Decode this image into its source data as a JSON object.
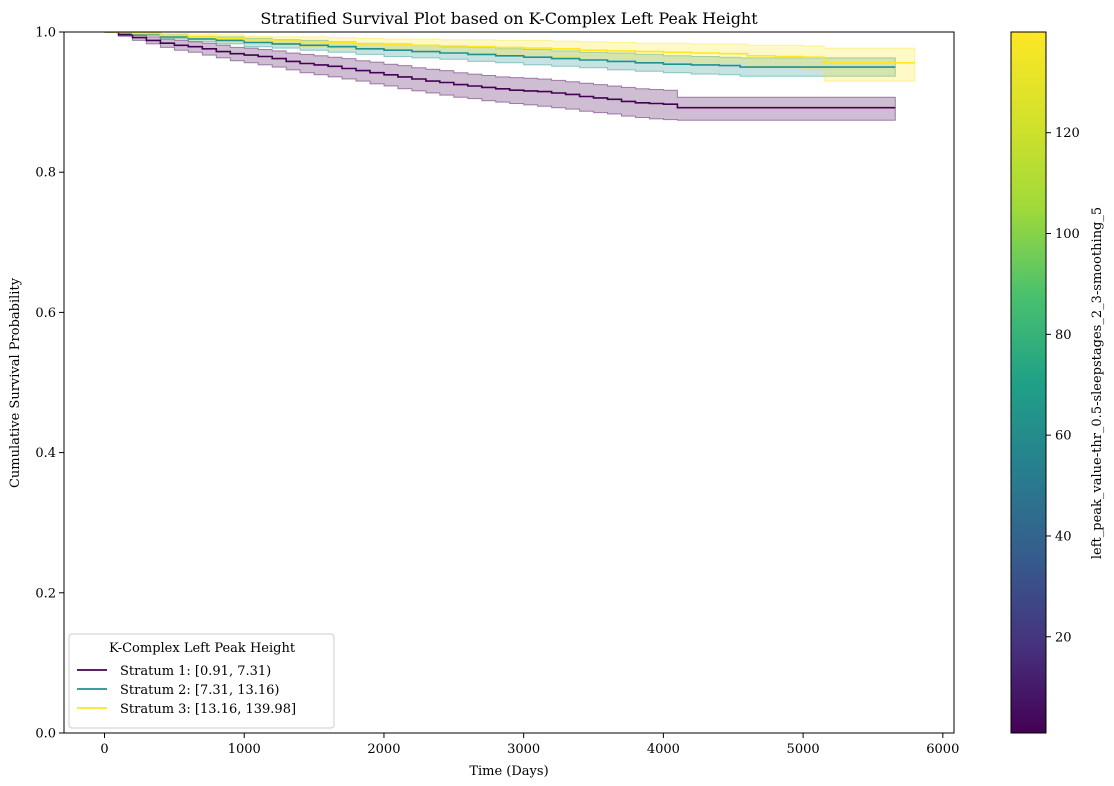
{
  "chart_data": {
    "type": "line",
    "title": "Stratified Survival Plot based on K-Complex Left Peak Height",
    "xlabel": "Time (Days)",
    "ylabel": "Cumulative Survival Probability",
    "xlim": [
      -290,
      6080
    ],
    "ylim": [
      0.0,
      1.0
    ],
    "xticks": [
      0,
      1000,
      2000,
      3000,
      4000,
      5000,
      6000
    ],
    "xtick_labels": [
      "0",
      "1000",
      "2000",
      "3000",
      "4000",
      "5000",
      "6000"
    ],
    "yticks": [
      0.0,
      0.2,
      0.4,
      0.6,
      0.8,
      1.0
    ],
    "ytick_labels": [
      "0.0",
      "0.2",
      "0.4",
      "0.6",
      "0.8",
      "1.0"
    ],
    "grid": false,
    "legend": {
      "title": "K-Complex Left Peak Height",
      "placement": "lower-left"
    },
    "colorbar": {
      "label": "left_peak_value-thr_0.5-sleepstages_2_3-smoothing_5",
      "range": [
        0.91,
        139.98
      ],
      "ticks": [
        20,
        40,
        60,
        80,
        100,
        120
      ],
      "tick_labels": [
        "20",
        "40",
        "60",
        "80",
        "100",
        "120"
      ]
    },
    "series": [
      {
        "name": "Stratum 1: [0.91, 7.31)",
        "color": "#440154",
        "x": [
          0,
          100,
          200,
          300,
          400,
          500,
          600,
          700,
          800,
          900,
          1000,
          1100,
          1200,
          1300,
          1400,
          1500,
          1600,
          1700,
          1800,
          1900,
          2000,
          2100,
          2200,
          2300,
          2400,
          2500,
          2600,
          2700,
          2800,
          2900,
          3000,
          3100,
          3200,
          3300,
          3400,
          3500,
          3600,
          3700,
          3800,
          3900,
          4000,
          4100,
          5660
        ],
        "y": [
          1.0,
          0.996,
          0.992,
          0.988,
          0.984,
          0.981,
          0.979,
          0.976,
          0.972,
          0.969,
          0.967,
          0.965,
          0.962,
          0.958,
          0.955,
          0.953,
          0.951,
          0.948,
          0.945,
          0.942,
          0.939,
          0.936,
          0.933,
          0.93,
          0.928,
          0.925,
          0.923,
          0.921,
          0.919,
          0.917,
          0.916,
          0.915,
          0.913,
          0.911,
          0.908,
          0.906,
          0.904,
          0.901,
          0.899,
          0.898,
          0.897,
          0.892,
          0.892
        ],
        "ci_lower": [
          1.0,
          0.994,
          0.988,
          0.983,
          0.978,
          0.974,
          0.971,
          0.967,
          0.963,
          0.959,
          0.956,
          0.953,
          0.95,
          0.946,
          0.942,
          0.939,
          0.936,
          0.933,
          0.93,
          0.926,
          0.923,
          0.919,
          0.916,
          0.913,
          0.91,
          0.907,
          0.905,
          0.902,
          0.9,
          0.898,
          0.896,
          0.894,
          0.892,
          0.89,
          0.887,
          0.885,
          0.883,
          0.88,
          0.878,
          0.876,
          0.875,
          0.874,
          0.874
        ],
        "ci_upper": [
          1.0,
          0.998,
          0.995,
          0.993,
          0.99,
          0.988,
          0.986,
          0.984,
          0.981,
          0.978,
          0.977,
          0.975,
          0.973,
          0.97,
          0.968,
          0.966,
          0.964,
          0.962,
          0.959,
          0.957,
          0.954,
          0.952,
          0.949,
          0.947,
          0.945,
          0.942,
          0.94,
          0.938,
          0.936,
          0.935,
          0.934,
          0.933,
          0.931,
          0.929,
          0.927,
          0.925,
          0.923,
          0.921,
          0.919,
          0.918,
          0.917,
          0.907,
          0.907
        ]
      },
      {
        "name": "Stratum 2: [7.31, 13.16)",
        "color": "#21918c",
        "x": [
          0,
          200,
          400,
          600,
          800,
          1000,
          1200,
          1400,
          1600,
          1800,
          2000,
          2200,
          2400,
          2600,
          2800,
          3000,
          3200,
          3400,
          3600,
          3800,
          4000,
          4200,
          4400,
          4550,
          5660
        ],
        "y": [
          1.0,
          0.997,
          0.993,
          0.99,
          0.988,
          0.985,
          0.983,
          0.981,
          0.979,
          0.976,
          0.974,
          0.972,
          0.97,
          0.968,
          0.966,
          0.964,
          0.962,
          0.96,
          0.958,
          0.956,
          0.954,
          0.953,
          0.952,
          0.95,
          0.95
        ],
        "ci_lower": [
          1.0,
          0.995,
          0.99,
          0.986,
          0.983,
          0.979,
          0.977,
          0.974,
          0.971,
          0.968,
          0.965,
          0.963,
          0.961,
          0.958,
          0.956,
          0.953,
          0.951,
          0.949,
          0.946,
          0.944,
          0.942,
          0.94,
          0.939,
          0.937,
          0.937
        ],
        "ci_upper": [
          1.0,
          0.999,
          0.996,
          0.994,
          0.993,
          0.991,
          0.989,
          0.988,
          0.986,
          0.984,
          0.983,
          0.981,
          0.979,
          0.978,
          0.976,
          0.975,
          0.973,
          0.971,
          0.97,
          0.968,
          0.966,
          0.965,
          0.964,
          0.963,
          0.963
        ]
      },
      {
        "name": "Stratum 3: [13.16, 139.98]",
        "color": "#fde725",
        "x": [
          0,
          200,
          400,
          600,
          800,
          1000,
          1200,
          1400,
          1600,
          1800,
          2000,
          2200,
          2400,
          2600,
          2800,
          3000,
          3200,
          3400,
          3600,
          3800,
          4000,
          4200,
          4400,
          4600,
          4800,
          5000,
          5150,
          5800
        ],
        "y": [
          1.0,
          0.998,
          0.995,
          0.993,
          0.991,
          0.989,
          0.987,
          0.986,
          0.985,
          0.983,
          0.982,
          0.981,
          0.98,
          0.979,
          0.978,
          0.977,
          0.976,
          0.974,
          0.973,
          0.972,
          0.971,
          0.97,
          0.969,
          0.966,
          0.965,
          0.964,
          0.956,
          0.956
        ],
        "ci_lower": [
          1.0,
          0.996,
          0.992,
          0.989,
          0.986,
          0.984,
          0.981,
          0.979,
          0.977,
          0.975,
          0.974,
          0.972,
          0.97,
          0.969,
          0.967,
          0.966,
          0.965,
          0.963,
          0.961,
          0.96,
          0.958,
          0.957,
          0.955,
          0.951,
          0.949,
          0.947,
          0.93,
          0.93
        ],
        "ci_upper": [
          1.0,
          1.0,
          0.998,
          0.997,
          0.996,
          0.994,
          0.993,
          0.993,
          0.992,
          0.991,
          0.99,
          0.99,
          0.989,
          0.989,
          0.988,
          0.988,
          0.987,
          0.986,
          0.985,
          0.984,
          0.984,
          0.983,
          0.983,
          0.981,
          0.981,
          0.98,
          0.977,
          0.977
        ]
      }
    ]
  }
}
